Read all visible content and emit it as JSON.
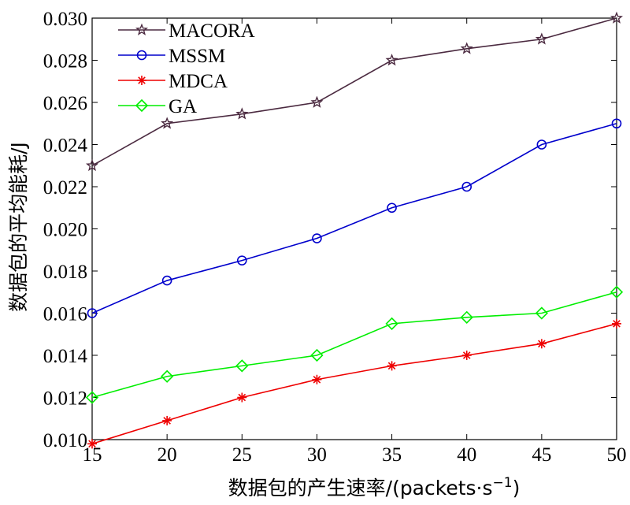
{
  "chart_data": {
    "type": "line",
    "x": [
      15,
      20,
      25,
      30,
      35,
      40,
      45,
      50
    ],
    "xlabel": "数据包的产生速率/(packets·s",
    "xlabel_sup": "−1",
    "xlabel_suffix": ")",
    "ylabel": "数据包的平均能耗/J",
    "xlim": [
      15,
      50
    ],
    "ylim": [
      0.01,
      0.03
    ],
    "xticks": [
      "15",
      "20",
      "25",
      "30",
      "35",
      "40",
      "45",
      "50"
    ],
    "yticks": [
      "0.010",
      "0.012",
      "0.014",
      "0.016",
      "0.018",
      "0.020",
      "0.022",
      "0.024",
      "0.026",
      "0.028",
      "0.030"
    ],
    "grid": false,
    "legend_position": "top-left",
    "series": [
      {
        "name": "MACORA",
        "color": "#4b2a40",
        "marker": "star",
        "values": [
          0.023,
          0.025,
          0.02545,
          0.026,
          0.028,
          0.02855,
          0.029,
          0.03
        ]
      },
      {
        "name": "MSSM",
        "color": "#0000cc",
        "marker": "circle",
        "values": [
          0.016,
          0.01755,
          0.0185,
          0.01955,
          0.021,
          0.022,
          0.024,
          0.025
        ]
      },
      {
        "name": "MDCA",
        "color": "#ee0000",
        "marker": "asterisk",
        "values": [
          0.0098,
          0.0109,
          0.012,
          0.01285,
          0.0135,
          0.014,
          0.01455,
          0.0155
        ]
      },
      {
        "name": "GA",
        "color": "#00ee00",
        "marker": "diamond",
        "values": [
          0.012,
          0.013,
          0.0135,
          0.014,
          0.0155,
          0.0158,
          0.016,
          0.017
        ]
      }
    ]
  }
}
